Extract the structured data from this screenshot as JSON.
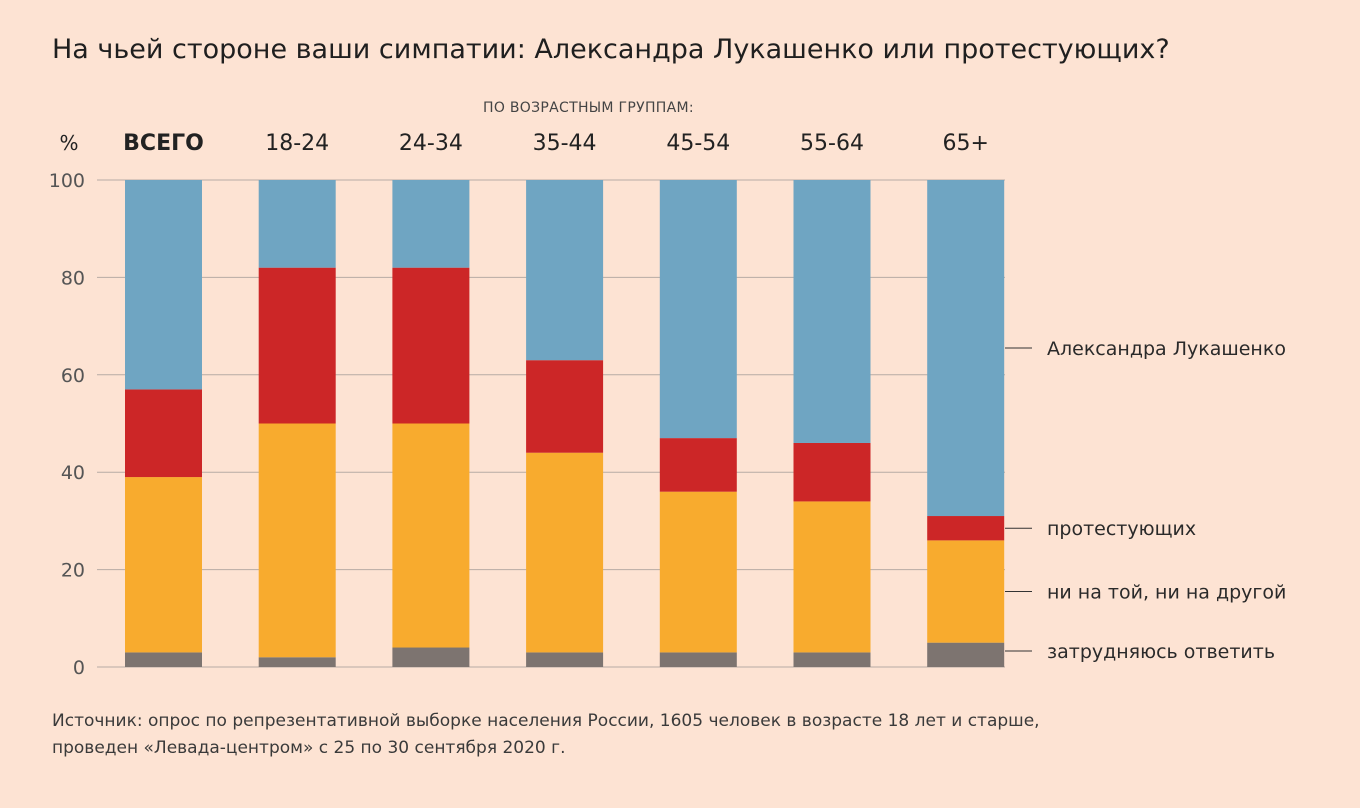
{
  "title": "На чьей стороне ваши симпатии: Александра Лукашенко или протестующих?",
  "subtitle": "ПО ВОЗРАСТНЫМ ГРУППАМ:",
  "source_line1": "Источник: опрос по репрезентативной выборке населения России, 1605 человек в возрасте 18 лет и старше,",
  "source_line2": "проведен «Левада-центром» с 25 по 30 сентября 2020 г.",
  "chart_data": {
    "type": "bar",
    "stacked": true,
    "y_unit_label": "%",
    "ylim": [
      0,
      100
    ],
    "y_ticks": [
      0,
      20,
      40,
      60,
      80,
      100
    ],
    "grid": true,
    "legend_placement": "right",
    "categories": [
      "ВСЕГО",
      "18-24",
      "24-34",
      "35-44",
      "45-54",
      "55-64",
      "65+"
    ],
    "series": [
      {
        "name": "затрудняюсь ответить",
        "color": "#7d7470",
        "values": [
          3,
          2,
          4,
          3,
          3,
          3,
          5
        ]
      },
      {
        "name": "ни на той, ни на другой",
        "color": "#f8ab2e",
        "values": [
          36,
          48,
          46,
          41,
          33,
          31,
          21
        ]
      },
      {
        "name": "протестующих",
        "color": "#cc2627",
        "values": [
          18,
          32,
          32,
          19,
          11,
          12,
          5
        ]
      },
      {
        "name": "Александра Лукашенко",
        "color": "#6fa5c2",
        "values": [
          43,
          18,
          18,
          37,
          53,
          54,
          69
        ]
      }
    ]
  }
}
